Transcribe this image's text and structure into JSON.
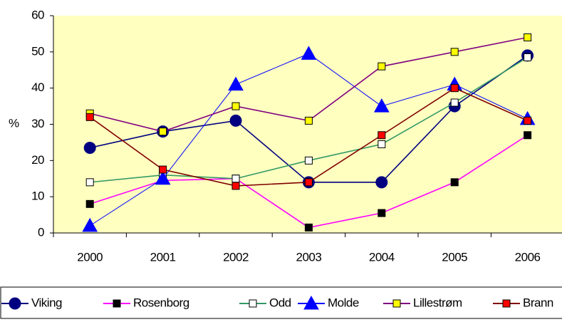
{
  "chart_data": {
    "type": "line",
    "y_label": "%",
    "categories": [
      "2000",
      "2001",
      "2002",
      "2003",
      "2004",
      "2005",
      "2006"
    ],
    "ylim": [
      0,
      60
    ],
    "yticks": [
      0,
      10,
      20,
      30,
      40,
      50,
      60
    ],
    "grid": false,
    "legend": "bottom",
    "series": [
      {
        "name": "Viking",
        "color": "#000080",
        "marker": "circle",
        "marker_color": "#000080",
        "values": [
          23.5,
          28,
          31,
          14,
          14,
          35,
          49
        ]
      },
      {
        "name": "Rosenborg",
        "color": "#ff00ff",
        "marker": "square",
        "marker_color": "#000000",
        "values": [
          8,
          14.5,
          15,
          1.5,
          5.5,
          14,
          27
        ]
      },
      {
        "name": "Odd",
        "color": "#339966",
        "marker": "square",
        "marker_color": "#ffffff",
        "values": [
          14,
          16,
          15,
          20,
          24.5,
          36,
          48.5
        ]
      },
      {
        "name": "Molde",
        "color": "#0000ff",
        "marker": "triangle",
        "marker_color": "#0000ff",
        "values": [
          2,
          15,
          41,
          49.5,
          35,
          41,
          31.5
        ]
      },
      {
        "name": "Lillestrøm",
        "color": "#800080",
        "marker": "square",
        "marker_color": "#ffff00",
        "values": [
          33,
          28,
          35,
          31,
          46,
          50,
          54
        ]
      },
      {
        "name": "Brann",
        "color": "#800000",
        "marker": "square",
        "marker_color": "#ff0000",
        "values": [
          32,
          17.5,
          13,
          14,
          27,
          40,
          31
        ]
      }
    ]
  }
}
